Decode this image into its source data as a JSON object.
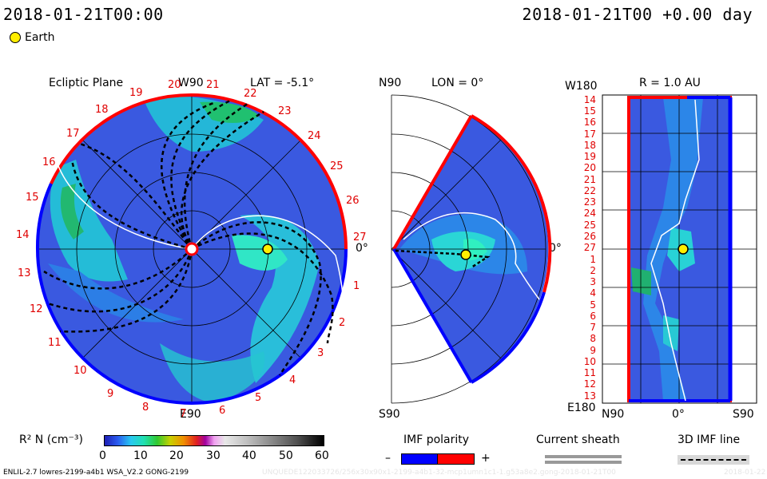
{
  "header": {
    "left_date": "2018-01-21T00:00",
    "right_date": "2018-01-21T00 +0.00 day",
    "legend_earth": "Earth"
  },
  "panel_ecliptic": {
    "title": "Ecliptic Plane",
    "top_label": "W90",
    "lat_label": "LAT = -5.1°",
    "bottom_label": "E90",
    "right_label": "0°",
    "sector_numbers": [
      "1",
      "2",
      "3",
      "4",
      "5",
      "6",
      "7",
      "8",
      "9",
      "10",
      "11",
      "12",
      "13",
      "14",
      "15",
      "16",
      "17",
      "18",
      "19",
      "20",
      "21",
      "22",
      "23",
      "24",
      "25",
      "26",
      "27"
    ]
  },
  "panel_meridional": {
    "top_label": "N90",
    "lon_label": "LON = 0°",
    "bottom_label": "S90",
    "right_label": "0°"
  },
  "panel_radial": {
    "title": "R = 1.0 AU",
    "top_left": "W180",
    "bottom_left": "E180",
    "x_tick_labels": [
      "N90",
      "0°",
      "S90"
    ],
    "y_tick_labels": [
      "14",
      "15",
      "16",
      "17",
      "18",
      "19",
      "20",
      "21",
      "22",
      "23",
      "24",
      "25",
      "26",
      "27",
      "1",
      "2",
      "3",
      "4",
      "5",
      "6",
      "7",
      "8",
      "9",
      "10",
      "11",
      "12",
      "13"
    ]
  },
  "colorbar": {
    "label": "R² N (cm⁻³)",
    "ticks": [
      "0",
      "10",
      "20",
      "30",
      "40",
      "50",
      "60"
    ]
  },
  "imf_legend": {
    "title": "IMF polarity",
    "minus": "–",
    "plus": "+"
  },
  "current_sheath": {
    "title": "Current sheath"
  },
  "imf_line": {
    "title": "3D IMF line"
  },
  "footer": {
    "model": "ENLIL-2.7 lowres-2199-a4b1 WSA_V2.2 GONG-2199",
    "faint_id": "UNQUEDE122033726/256x30x90x1-2199-a4b1-32-mcp1umn1c1-1.g53a8e2.gong-2018-01-21T00",
    "faint_date": "2018-01-22"
  },
  "colors": {
    "positive_polarity": "#ff0000",
    "negative_polarity": "#0000ff",
    "background_wind": "#3355dd",
    "earth": "#ffee00"
  },
  "chart_data": {
    "type": "heatmap",
    "quantity": "R² N (cm⁻³)",
    "color_range": [
      0,
      60
    ],
    "time": "2018-01-21T00 +0.00 day",
    "earth_position": {
      "ecliptic_angle_deg": 0,
      "r_au": 1.0,
      "lat_deg": -5.1,
      "lon_deg": 0
    },
    "panels": [
      "Ecliptic Plane",
      "LON = 0°",
      "R = 1.0 AU"
    ]
  }
}
